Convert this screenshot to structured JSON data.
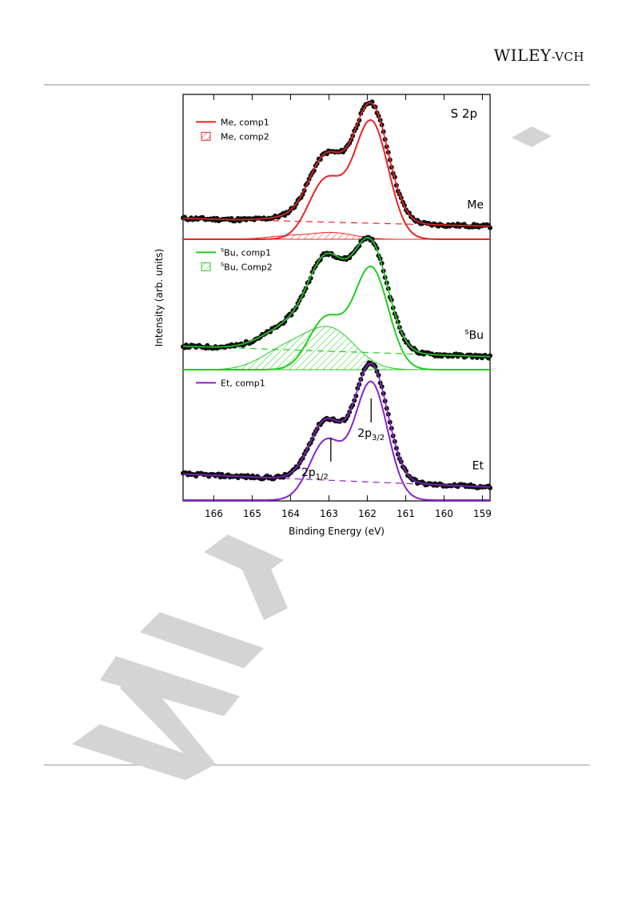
{
  "header": {
    "publisher_main": "WILEY",
    "publisher_suffix": "-VCH"
  },
  "colors": {
    "data_points": "#111111",
    "envelope": "#000000",
    "me": "#ee2222",
    "sbu": "#22cc22",
    "et": "#8822cc",
    "watermark": "#d0d0d0",
    "rules": "#c8c8c8"
  },
  "chart_data": {
    "type": "line",
    "title": "S 2p",
    "xlabel": "Binding Energy (eV)",
    "ylabel": "Intensity (arb. units)",
    "xlim": [
      166.8,
      158.8
    ],
    "x_reversed": true,
    "xticks": [
      166,
      165,
      164,
      163,
      162,
      161,
      160,
      159
    ],
    "y_units": "arbitrary",
    "legend_placement": "left, inside each panel",
    "panels": [
      {
        "label": "Me",
        "label_super": "",
        "color": "#ee2222",
        "offset": 2.0,
        "background_low": 0.02,
        "background_high": 0.08,
        "legend": [
          {
            "marker": "line",
            "text_super": "",
            "text": "Me, comp1"
          },
          {
            "marker": "hatch",
            "text_super": "",
            "text": "Me, comp2"
          }
        ],
        "components": [
          {
            "name": "comp1",
            "p32_center": 161.9,
            "p32_height": 0.9,
            "fwhm": 1.05,
            "hatched": false
          },
          {
            "name": "comp2",
            "p32_center": 162.9,
            "p32_height": 0.05,
            "fwhm": 1.3,
            "hatched": true
          }
        ]
      },
      {
        "label": "Bu",
        "label_super": "s",
        "color": "#22cc22",
        "offset": 1.0,
        "background_low": 0.02,
        "background_high": 0.1,
        "legend": [
          {
            "marker": "line",
            "text_super": "s",
            "text": "Bu, comp1"
          },
          {
            "marker": "hatch",
            "text_super": "s",
            "text": "Bu, Comp2"
          }
        ],
        "components": [
          {
            "name": "comp1",
            "p32_center": 161.9,
            "p32_height": 0.78,
            "fwhm": 1.05,
            "hatched": false
          },
          {
            "name": "comp2",
            "p32_center": 162.95,
            "p32_height": 0.3,
            "fwhm": 1.5,
            "hatched": true
          }
        ]
      },
      {
        "label": "Et",
        "label_super": "",
        "color": "#8822cc",
        "offset": 0.0,
        "background_low": 0.02,
        "background_high": 0.12,
        "legend": [
          {
            "marker": "line",
            "text_super": "",
            "text": "Et, comp1"
          }
        ],
        "components": [
          {
            "name": "comp1",
            "p32_center": 161.9,
            "p32_height": 0.9,
            "fwhm": 1.0,
            "hatched": false
          }
        ]
      }
    ],
    "annotations": [
      {
        "base": "2p",
        "sub": "3/2",
        "energy": 161.9
      },
      {
        "base": "2p",
        "sub": "1/2",
        "energy": 162.95
      }
    ]
  }
}
